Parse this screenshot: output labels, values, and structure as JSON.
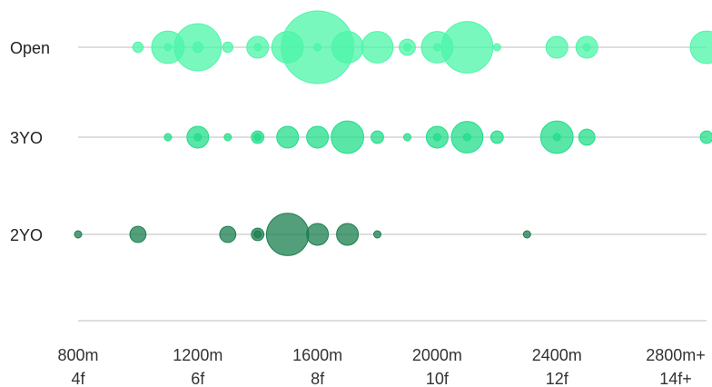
{
  "chart_data": {
    "type": "scatter",
    "title": "",
    "xlabel": "",
    "ylabel": "",
    "xlim": [
      800,
      2900
    ],
    "x_ticks": [
      {
        "value": 800,
        "line1": "800m",
        "line2": "4f"
      },
      {
        "value": 1200,
        "line1": "1200m",
        "line2": "6f"
      },
      {
        "value": 1600,
        "line1": "1600m",
        "line2": "8f"
      },
      {
        "value": 2000,
        "line1": "2000m",
        "line2": "10f"
      },
      {
        "value": 2400,
        "line1": "2400m",
        "line2": "12f"
      },
      {
        "value": 2800,
        "line1": "2800m+",
        "line2": "14f+"
      }
    ],
    "size_note": "s values are relative bubble sizes (count), area-proportional",
    "series": [
      {
        "name": "Open",
        "color": "#4cf5a8",
        "points": [
          {
            "x": 1000,
            "s": 2
          },
          {
            "x": 1100,
            "s": 20
          },
          {
            "x": 1100,
            "s": 1
          },
          {
            "x": 1200,
            "s": 42
          },
          {
            "x": 1200,
            "s": 2
          },
          {
            "x": 1300,
            "s": 2
          },
          {
            "x": 1400,
            "s": 9
          },
          {
            "x": 1400,
            "s": 1
          },
          {
            "x": 1500,
            "s": 19
          },
          {
            "x": 1600,
            "s": 100
          },
          {
            "x": 1600,
            "s": 1
          },
          {
            "x": 1700,
            "s": 19
          },
          {
            "x": 1800,
            "s": 19
          },
          {
            "x": 1900,
            "s": 5
          },
          {
            "x": 1900,
            "s": 1
          },
          {
            "x": 2000,
            "s": 19
          },
          {
            "x": 2000,
            "s": 1
          },
          {
            "x": 2100,
            "s": 50
          },
          {
            "x": 2200,
            "s": 1
          },
          {
            "x": 2400,
            "s": 9
          },
          {
            "x": 2500,
            "s": 9
          },
          {
            "x": 2500,
            "s": 1
          },
          {
            "x": 2900,
            "s": 20
          }
        ]
      },
      {
        "name": "3YO",
        "color": "#22dd8a",
        "points": [
          {
            "x": 1100,
            "s": 1
          },
          {
            "x": 1200,
            "s": 9
          },
          {
            "x": 1200,
            "s": 1
          },
          {
            "x": 1300,
            "s": 1
          },
          {
            "x": 1400,
            "s": 3
          },
          {
            "x": 1400,
            "s": 1
          },
          {
            "x": 1500,
            "s": 9
          },
          {
            "x": 1600,
            "s": 9
          },
          {
            "x": 1700,
            "s": 20
          },
          {
            "x": 1800,
            "s": 3
          },
          {
            "x": 1900,
            "s": 1
          },
          {
            "x": 2000,
            "s": 9
          },
          {
            "x": 2000,
            "s": 1
          },
          {
            "x": 2100,
            "s": 19
          },
          {
            "x": 2100,
            "s": 1
          },
          {
            "x": 2200,
            "s": 3
          },
          {
            "x": 2400,
            "s": 20
          },
          {
            "x": 2400,
            "s": 1
          },
          {
            "x": 2500,
            "s": 5
          },
          {
            "x": 2900,
            "s": 3
          }
        ]
      },
      {
        "name": "2YO",
        "color": "#1b7f4f",
        "points": [
          {
            "x": 800,
            "s": 1
          },
          {
            "x": 1000,
            "s": 5
          },
          {
            "x": 1300,
            "s": 5
          },
          {
            "x": 1400,
            "s": 3
          },
          {
            "x": 1400,
            "s": 1
          },
          {
            "x": 1500,
            "s": 34
          },
          {
            "x": 1600,
            "s": 9
          },
          {
            "x": 1700,
            "s": 9
          },
          {
            "x": 1800,
            "s": 1
          },
          {
            "x": 2300,
            "s": 1
          }
        ]
      }
    ]
  }
}
